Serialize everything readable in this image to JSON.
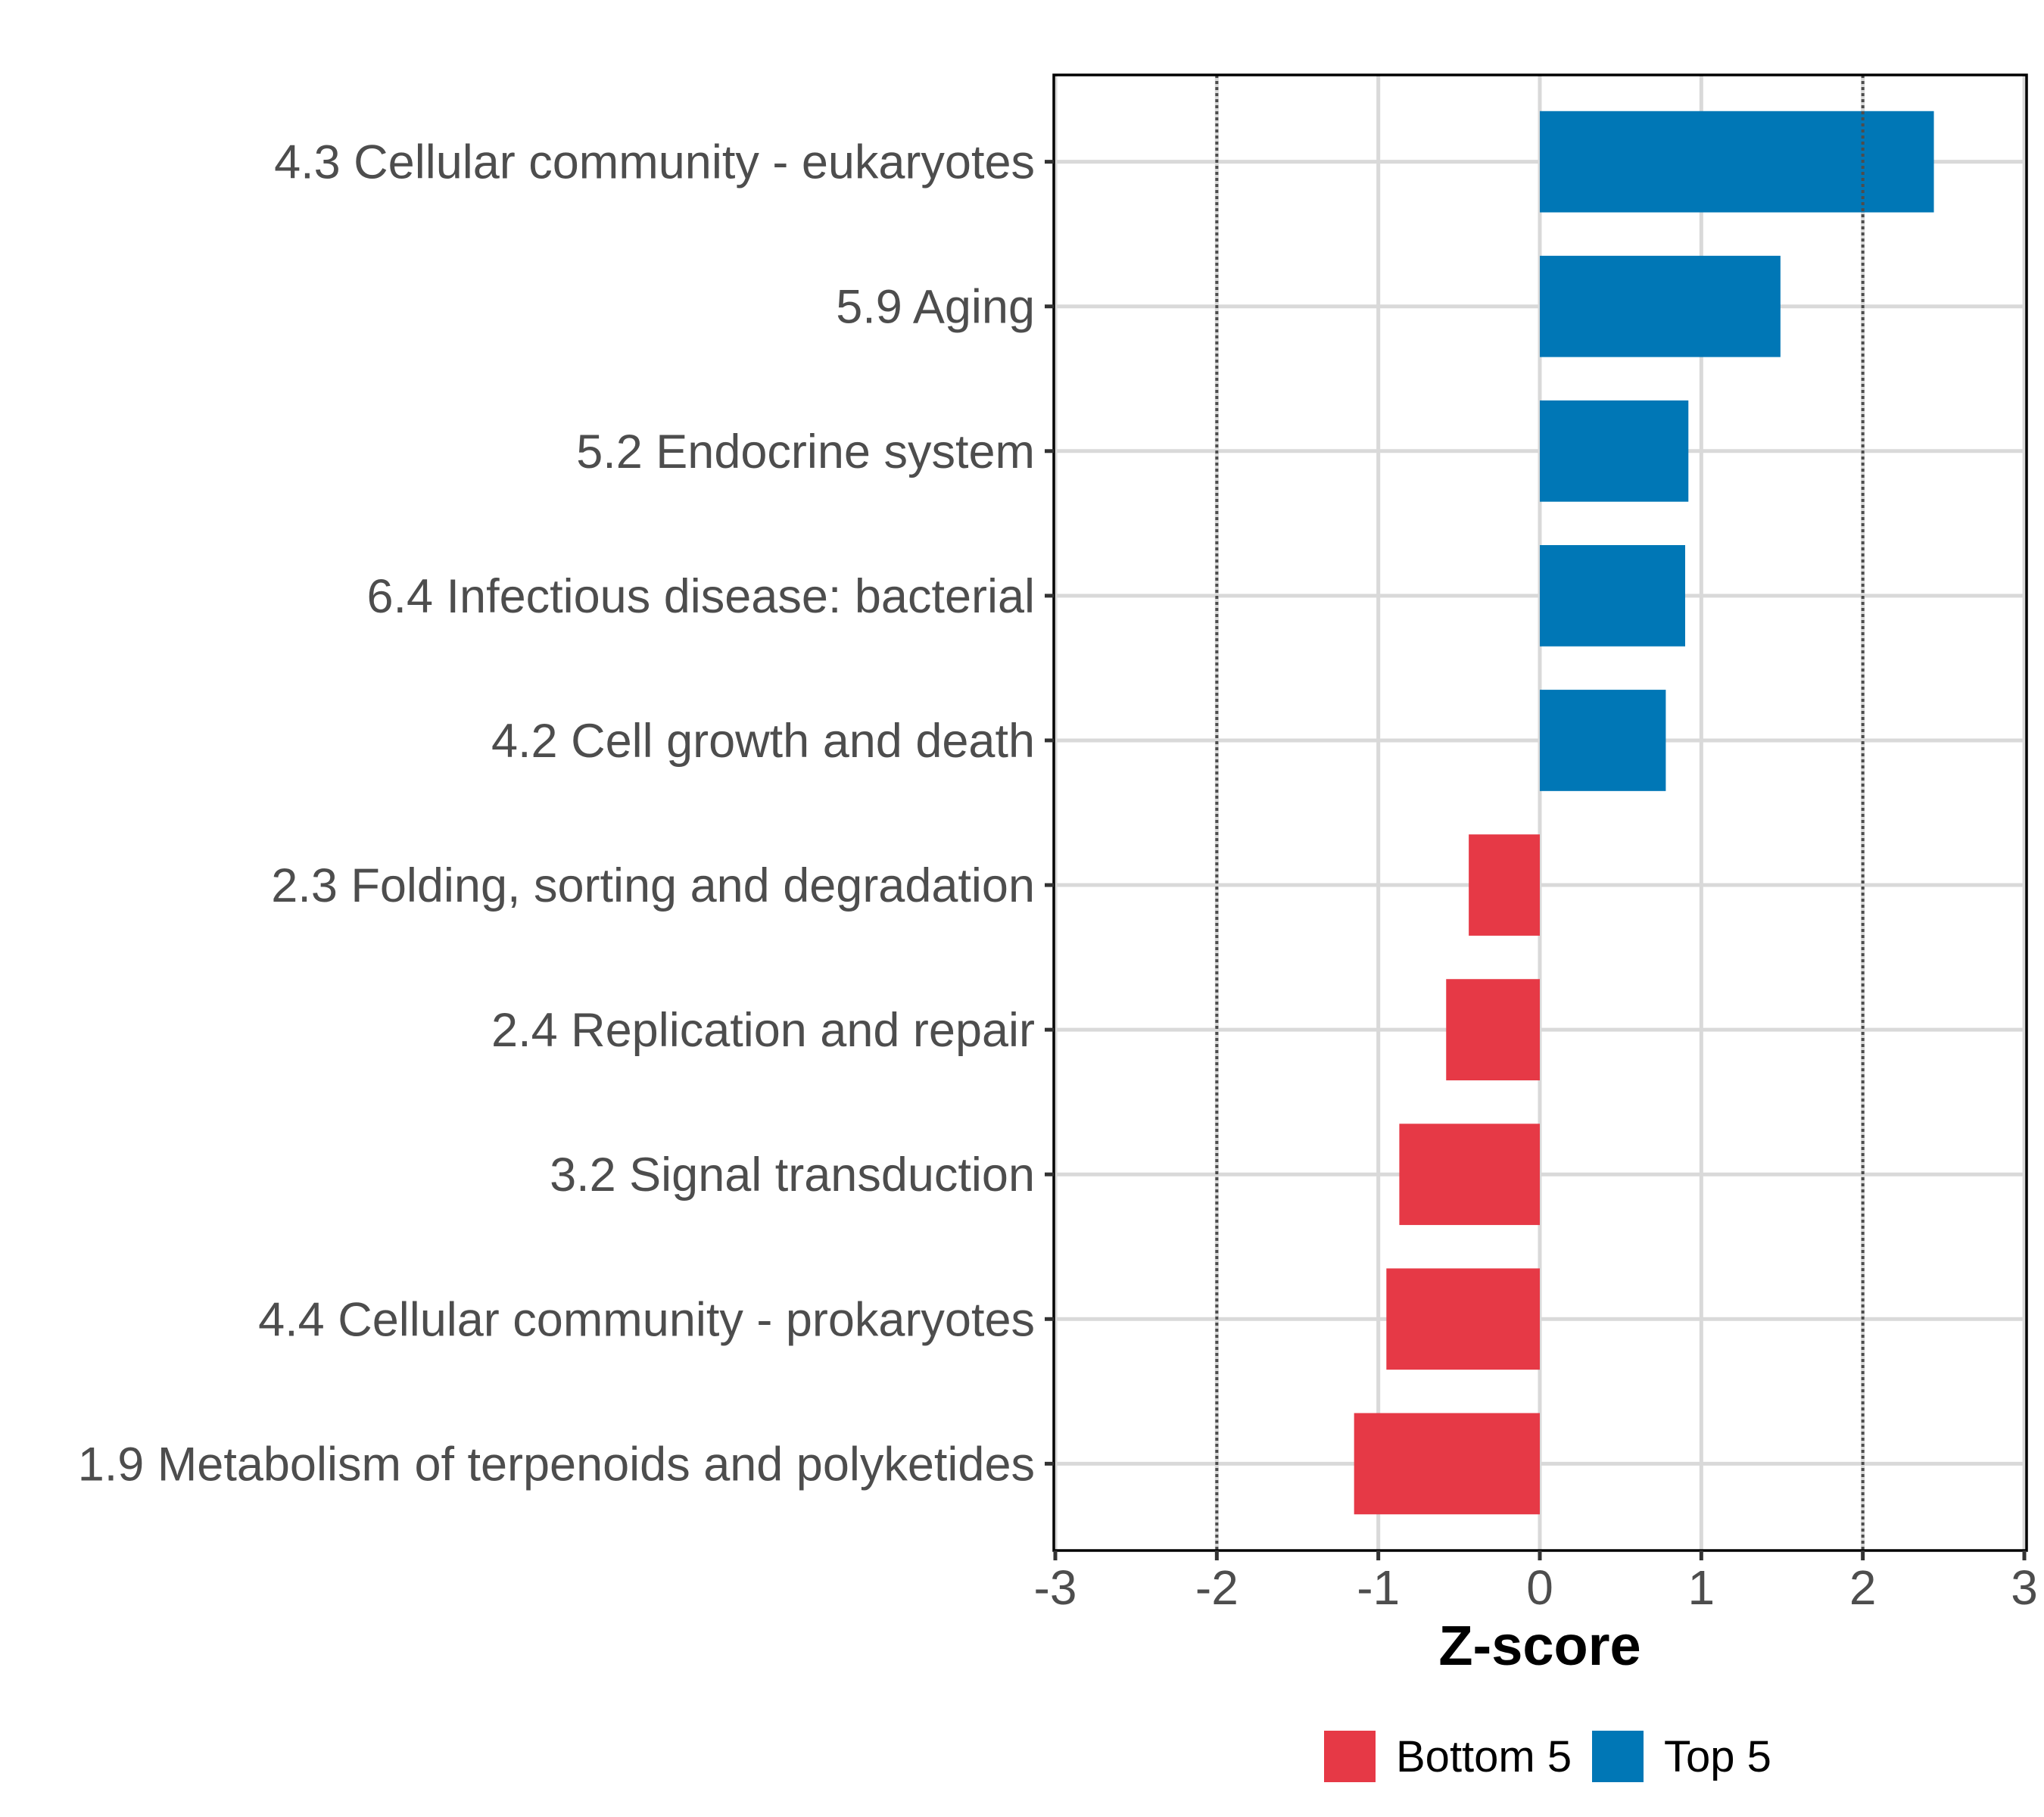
{
  "chart_data": {
    "type": "bar",
    "orientation": "horizontal",
    "title": "",
    "xlabel": "Z-score",
    "ylabel": "",
    "xlim": [
      -3,
      3
    ],
    "xticks": [
      -3,
      -2,
      -1,
      0,
      1,
      2,
      3
    ],
    "xtick_labels": [
      "-3",
      "-2",
      "-1",
      "0",
      "1",
      "2",
      "3"
    ],
    "reference_lines": [
      {
        "x": -2,
        "style": "dotted"
      },
      {
        "x": 2,
        "style": "dotted"
      }
    ],
    "grid": true,
    "categories": [
      "4.3 Cellular community - eukaryotes",
      "5.9 Aging",
      "5.2 Endocrine system",
      "6.4 Infectious disease: bacterial",
      "4.2 Cell growth and death",
      "2.3 Folding, sorting and degradation",
      "2.4 Replication and repair",
      "3.2 Signal transduction",
      "4.4 Cellular community - prokaryotes",
      "1.9 Metabolism of terpenoids and polyketides"
    ],
    "values": [
      2.44,
      1.49,
      0.92,
      0.9,
      0.78,
      -0.44,
      -0.58,
      -0.87,
      -0.95,
      -1.15
    ],
    "groups": [
      "Top 5",
      "Top 5",
      "Top 5",
      "Top 5",
      "Top 5",
      "Bottom 5",
      "Bottom 5",
      "Bottom 5",
      "Bottom 5",
      "Bottom 5"
    ],
    "legend": {
      "position": "bottom",
      "entries": [
        {
          "label": "Bottom 5",
          "color": "#E63946"
        },
        {
          "label": "Top 5",
          "color": "#0077B6"
        }
      ]
    },
    "colors": {
      "Bottom 5": "#E63946",
      "Top 5": "#0077B6",
      "grid": "#D9D9D9",
      "reference_line": "#4D4D4D",
      "axis_text": "#4D4D4D"
    }
  }
}
